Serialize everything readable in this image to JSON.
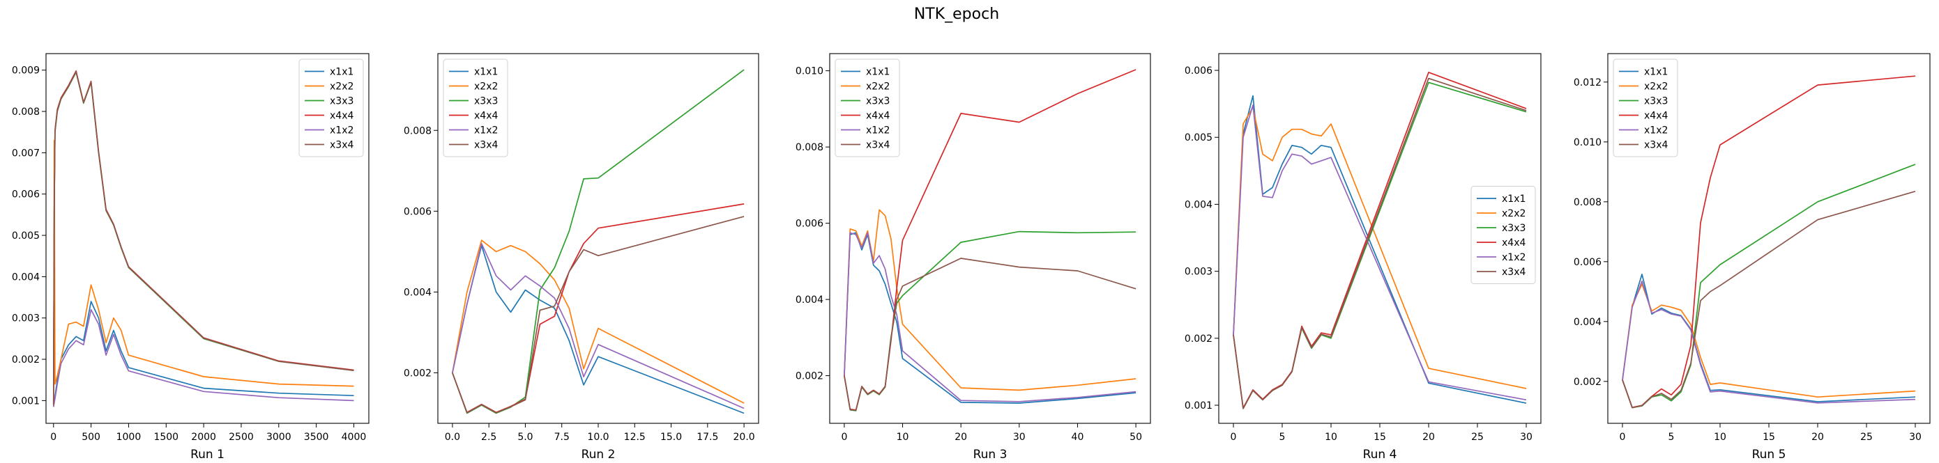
{
  "figure": {
    "title": "NTK_epoch"
  },
  "colors": {
    "x1x1": "#1f77b4",
    "x2x2": "#ff7f0e",
    "x3x3": "#2ca02c",
    "x4x4": "#d62728",
    "x1x2": "#9467bd",
    "x3x4": "#8c564b"
  },
  "chart_data": [
    {
      "type": "line",
      "xlabel": "Run 1",
      "xlim": [
        -100,
        4200
      ],
      "ylim": [
        0.00045,
        0.0094
      ],
      "xticks": [
        0,
        500,
        1000,
        1500,
        2000,
        2500,
        3000,
        3500,
        4000
      ],
      "xtick_labels": [
        "0",
        "500",
        "1000",
        "1500",
        "2000",
        "2500",
        "3000",
        "3500",
        "4000"
      ],
      "yticks": [
        0.001,
        0.002,
        0.003,
        0.004,
        0.005,
        0.006,
        0.007,
        0.008,
        0.009
      ],
      "ytick_labels": [
        "0.001",
        "0.002",
        "0.003",
        "0.004",
        "0.005",
        "0.006",
        "0.007",
        "0.008",
        "0.009"
      ],
      "legend": {
        "location": "upper-right"
      },
      "x": [
        0,
        10,
        20,
        50,
        100,
        200,
        300,
        400,
        500,
        600,
        700,
        800,
        900,
        1000,
        2000,
        3000,
        4000
      ],
      "series": [
        {
          "name": "x1x1",
          "values": [
            0.0009,
            0.001,
            0.0011,
            0.0015,
            0.002,
            0.00235,
            0.00255,
            0.00245,
            0.0034,
            0.003,
            0.0022,
            0.0027,
            0.0022,
            0.0018,
            0.0013,
            0.00118,
            0.00112
          ]
        },
        {
          "name": "x2x2",
          "values": [
            0.00085,
            0.0073,
            0.0014,
            0.0016,
            0.002,
            0.00285,
            0.0029,
            0.0028,
            0.0038,
            0.0032,
            0.0024,
            0.003,
            0.0027,
            0.0021,
            0.00158,
            0.0014,
            0.00135
          ]
        },
        {
          "name": "x3x3",
          "values": [
            0.0009,
            0.0056,
            0.0075,
            0.008,
            0.0083,
            0.0086,
            0.00895,
            0.0082,
            0.0087,
            0.007,
            0.0056,
            0.00525,
            0.0047,
            0.00422,
            0.0025,
            0.00195,
            0.00173
          ]
        },
        {
          "name": "x4x4",
          "values": [
            0.0009,
            0.00565,
            0.00755,
            0.00805,
            0.00833,
            0.00863,
            0.00898,
            0.00822,
            0.00873,
            0.00703,
            0.00563,
            0.00527,
            0.00472,
            0.00424,
            0.00252,
            0.00196,
            0.00174
          ]
        },
        {
          "name": "x1x2",
          "values": [
            0.00085,
            0.00095,
            0.00105,
            0.0014,
            0.0019,
            0.00225,
            0.00245,
            0.00235,
            0.0032,
            0.00285,
            0.0021,
            0.0026,
            0.0021,
            0.00172,
            0.00122,
            0.00107,
            0.001
          ]
        },
        {
          "name": "x3x4",
          "values": [
            0.0009,
            0.00562,
            0.00752,
            0.00802,
            0.00831,
            0.00861,
            0.00896,
            0.00821,
            0.00871,
            0.00701,
            0.00561,
            0.00526,
            0.00471,
            0.00423,
            0.00251,
            0.00195,
            0.00173
          ]
        }
      ]
    },
    {
      "type": "line",
      "xlabel": "Run 2",
      "xlim": [
        -1,
        21
      ],
      "ylim": [
        0.00075,
        0.0099
      ],
      "xticks": [
        0,
        2.5,
        5,
        7.5,
        10,
        12.5,
        15,
        17.5,
        20
      ],
      "xtick_labels": [
        "0.0",
        "2.5",
        "5.0",
        "7.5",
        "10.0",
        "12.5",
        "15.0",
        "17.5",
        "20.0"
      ],
      "yticks": [
        0.002,
        0.004,
        0.006,
        0.008
      ],
      "ytick_labels": [
        "0.002",
        "0.004",
        "0.006",
        "0.008"
      ],
      "legend": {
        "location": "upper-left"
      },
      "x": [
        0,
        1,
        2,
        3,
        4,
        5,
        6,
        7,
        8,
        9,
        10,
        20
      ],
      "series": [
        {
          "name": "x1x1",
          "values": [
            0.002,
            0.0037,
            0.00515,
            0.004,
            0.0035,
            0.00405,
            0.0038,
            0.0036,
            0.0028,
            0.0017,
            0.0024,
            0.001
          ]
        },
        {
          "name": "x2x2",
          "values": [
            0.002,
            0.004,
            0.00528,
            0.005,
            0.00515,
            0.005,
            0.0047,
            0.0043,
            0.0036,
            0.0021,
            0.0031,
            0.00125
          ]
        },
        {
          "name": "x3x3",
          "values": [
            0.002,
            0.001,
            0.0012,
            0.001,
            0.00115,
            0.0014,
            0.00405,
            0.0046,
            0.0055,
            0.0068,
            0.00682,
            0.0095
          ]
        },
        {
          "name": "x4x4",
          "values": [
            0.002,
            0.00102,
            0.00122,
            0.00102,
            0.00117,
            0.00135,
            0.0032,
            0.0034,
            0.0045,
            0.0052,
            0.00558,
            0.00618
          ]
        },
        {
          "name": "x1x2",
          "values": [
            0.002,
            0.0037,
            0.0052,
            0.0044,
            0.00405,
            0.0044,
            0.00415,
            0.00385,
            0.0031,
            0.0019,
            0.0027,
            0.00112
          ]
        },
        {
          "name": "x3x4",
          "values": [
            0.002,
            0.00101,
            0.00121,
            0.00101,
            0.00116,
            0.00133,
            0.00355,
            0.00365,
            0.0045,
            0.00505,
            0.0049,
            0.00587
          ]
        }
      ]
    },
    {
      "type": "line",
      "xlabel": "Run 3",
      "xlim": [
        -2.5,
        52.5
      ],
      "ylim": [
        0.00075,
        0.01045
      ],
      "xticks": [
        0,
        10,
        20,
        30,
        40,
        50
      ],
      "xtick_labels": [
        "0",
        "10",
        "20",
        "30",
        "40",
        "50"
      ],
      "yticks": [
        0.002,
        0.004,
        0.006,
        0.008,
        0.01
      ],
      "ytick_labels": [
        "0.002",
        "0.004",
        "0.006",
        "0.008",
        "0.010"
      ],
      "legend": {
        "location": "upper-left"
      },
      "x": [
        0,
        1,
        2,
        3,
        4,
        5,
        6,
        7,
        8,
        9,
        10,
        20,
        30,
        40,
        50
      ],
      "series": [
        {
          "name": "x1x1",
          "values": [
            0.002,
            0.0057,
            0.00575,
            0.0053,
            0.0057,
            0.0049,
            0.00475,
            0.0044,
            0.0039,
            0.0034,
            0.00245,
            0.0013,
            0.00128,
            0.0014,
            0.00155
          ]
        },
        {
          "name": "x2x2",
          "values": [
            0.002,
            0.00585,
            0.0058,
            0.0054,
            0.0058,
            0.005,
            0.00635,
            0.0062,
            0.0056,
            0.0043,
            0.00335,
            0.00168,
            0.00162,
            0.00175,
            0.00192
          ]
        },
        {
          "name": "x3x3",
          "values": [
            0.002,
            0.0011,
            0.00108,
            0.0017,
            0.0015,
            0.0016,
            0.0015,
            0.0017,
            0.003,
            0.0039,
            0.0041,
            0.0055,
            0.00578,
            0.00575,
            0.00577
          ]
        },
        {
          "name": "x4x4",
          "values": [
            0.002,
            0.00112,
            0.0011,
            0.00172,
            0.00152,
            0.00162,
            0.00152,
            0.00172,
            0.0029,
            0.0043,
            0.00555,
            0.00888,
            0.00865,
            0.0094,
            0.01003
          ]
        },
        {
          "name": "x1x2",
          "values": [
            0.002,
            0.00575,
            0.0057,
            0.00535,
            0.00575,
            0.00495,
            0.00515,
            0.0048,
            0.0041,
            0.0036,
            0.00265,
            0.00135,
            0.00132,
            0.00143,
            0.00158
          ]
        },
        {
          "name": "x3x4",
          "values": [
            0.002,
            0.00111,
            0.00109,
            0.00171,
            0.00151,
            0.00161,
            0.00151,
            0.00171,
            0.00295,
            0.004,
            0.00435,
            0.00508,
            0.00485,
            0.00475,
            0.00428
          ]
        }
      ]
    },
    {
      "type": "line",
      "xlabel": "Run 4",
      "xlim": [
        -1.5,
        31.5
      ],
      "ylim": [
        0.00073,
        0.00625
      ],
      "xticks": [
        0,
        5,
        10,
        15,
        20,
        25,
        30
      ],
      "xtick_labels": [
        "0",
        "5",
        "10",
        "15",
        "20",
        "25",
        "30"
      ],
      "yticks": [
        0.001,
        0.002,
        0.003,
        0.004,
        0.005,
        0.006
      ],
      "ytick_labels": [
        "0.001",
        "0.002",
        "0.003",
        "0.004",
        "0.005",
        "0.006"
      ],
      "legend": {
        "location": "center-right"
      },
      "x": [
        0,
        1,
        2,
        3,
        4,
        5,
        6,
        7,
        8,
        9,
        10,
        20,
        30
      ],
      "series": [
        {
          "name": "x1x1",
          "values": [
            0.00205,
            0.00505,
            0.00562,
            0.00415,
            0.00425,
            0.0046,
            0.00488,
            0.00485,
            0.00475,
            0.00488,
            0.00485,
            0.00133,
            0.00103
          ]
        },
        {
          "name": "x2x2",
          "values": [
            0.00205,
            0.0052,
            0.00545,
            0.00475,
            0.00465,
            0.005,
            0.00512,
            0.00512,
            0.00505,
            0.00502,
            0.0052,
            0.00155,
            0.00125
          ]
        },
        {
          "name": "x3x3",
          "values": [
            0.00205,
            0.00095,
            0.00122,
            0.00108,
            0.00122,
            0.0013,
            0.0015,
            0.00215,
            0.00185,
            0.00205,
            0.002,
            0.00582,
            0.00538
          ]
        },
        {
          "name": "x4x4",
          "values": [
            0.00205,
            0.00096,
            0.00123,
            0.00109,
            0.00123,
            0.00131,
            0.00151,
            0.00218,
            0.00188,
            0.00208,
            0.00205,
            0.00597,
            0.00543
          ]
        },
        {
          "name": "x1x2",
          "values": [
            0.00205,
            0.005,
            0.00548,
            0.00412,
            0.0041,
            0.0045,
            0.00475,
            0.00472,
            0.0046,
            0.00465,
            0.0047,
            0.00135,
            0.00108
          ]
        },
        {
          "name": "x3x4",
          "values": [
            0.00205,
            0.00095,
            0.00122,
            0.00108,
            0.00122,
            0.0013,
            0.0015,
            0.00216,
            0.00186,
            0.00206,
            0.00202,
            0.00588,
            0.0054
          ]
        }
      ]
    },
    {
      "type": "line",
      "xlabel": "Run 5",
      "xlim": [
        -1.5,
        31.5
      ],
      "ylim": [
        0.0006,
        0.01295
      ],
      "xticks": [
        0,
        5,
        10,
        15,
        20,
        25,
        30
      ],
      "xtick_labels": [
        "0",
        "5",
        "10",
        "15",
        "20",
        "25",
        "30"
      ],
      "yticks": [
        0.002,
        0.004,
        0.006,
        0.008,
        0.01,
        0.012
      ],
      "ytick_labels": [
        "0.002",
        "0.004",
        "0.006",
        "0.008",
        "0.010",
        "0.012"
      ],
      "legend": {
        "location": "upper-left"
      },
      "x": [
        0,
        1,
        2,
        3,
        4,
        5,
        6,
        7,
        8,
        9,
        10,
        20,
        30
      ],
      "series": [
        {
          "name": "x1x1",
          "values": [
            0.00205,
            0.0045,
            0.00558,
            0.00425,
            0.00445,
            0.00428,
            0.0042,
            0.00375,
            0.0026,
            0.0017,
            0.00172,
            0.00132,
            0.00148
          ]
        },
        {
          "name": "x2x2",
          "values": [
            0.00205,
            0.00455,
            0.00525,
            0.00435,
            0.00455,
            0.00448,
            0.00438,
            0.0039,
            0.0028,
            0.0019,
            0.00195,
            0.00148,
            0.00168
          ]
        },
        {
          "name": "x3x3",
          "values": [
            0.00205,
            0.00112,
            0.00118,
            0.00148,
            0.00155,
            0.00135,
            0.00165,
            0.00255,
            0.0053,
            0.0056,
            0.0059,
            0.008,
            0.00925
          ]
        },
        {
          "name": "x4x4",
          "values": [
            0.00205,
            0.00113,
            0.0012,
            0.0015,
            0.00175,
            0.00155,
            0.0019,
            0.0032,
            0.0073,
            0.0088,
            0.0099,
            0.0119,
            0.0122
          ]
        },
        {
          "name": "x1x2",
          "values": [
            0.00205,
            0.00448,
            0.00535,
            0.00428,
            0.0044,
            0.00425,
            0.00418,
            0.00372,
            0.00255,
            0.00165,
            0.00168,
            0.00128,
            0.0014
          ]
        },
        {
          "name": "x3x4",
          "values": [
            0.00205,
            0.00112,
            0.00119,
            0.00149,
            0.0016,
            0.0014,
            0.0017,
            0.0026,
            0.0047,
            0.005,
            0.0052,
            0.0074,
            0.00835
          ]
        }
      ]
    }
  ]
}
